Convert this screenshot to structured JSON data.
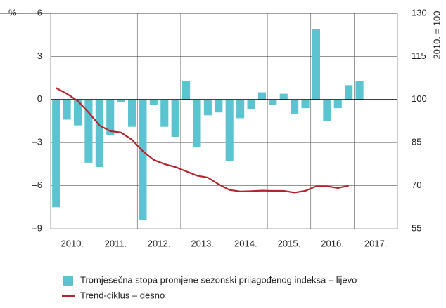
{
  "chart_data": {
    "type": "bar",
    "y_label": "%",
    "y2_label": "2010. = 100",
    "categories": [
      "2010.",
      null,
      null,
      null,
      "2011.",
      null,
      null,
      null,
      "2012.",
      null,
      null,
      null,
      "2013.",
      null,
      null,
      null,
      "2014.",
      null,
      null,
      null,
      "2015.",
      null,
      null,
      null,
      "2016.",
      null,
      null,
      null,
      "2017."
    ],
    "series": [
      {
        "name": "Tromjesečna stopa promjene sezonski prilagođenog indeksa – lijevo",
        "type": "bar",
        "color": "#5bc4d0",
        "values": [
          -7.5,
          -1.4,
          -1.8,
          -4.4,
          -4.7,
          -2.5,
          -0.2,
          -1.9,
          -8.4,
          -0.4,
          -1.9,
          -2.6,
          1.3,
          -3.3,
          -1.1,
          -0.9,
          -4.3,
          -1.3,
          -0.7,
          0.5,
          -0.4,
          0.4,
          -1.0,
          -0.6,
          4.9,
          -1.5,
          -0.6,
          1.0,
          1.3
        ]
      },
      {
        "name": "Trend-ciklus – desno",
        "type": "line",
        "axis": "y2",
        "color": "#b3242b",
        "values": [
          104,
          102,
          99.5,
          95.5,
          91,
          89,
          88.5,
          86,
          82,
          79,
          77.5,
          76.5,
          75,
          73.5,
          72.8,
          70.5,
          68.5,
          68,
          68.1,
          68.3,
          68.2,
          68.2,
          67.6,
          68.2,
          69.8,
          69.8,
          69.2,
          70,
          null
        ]
      }
    ],
    "ylim": [
      -9,
      6
    ],
    "yticks": [
      6,
      3,
      0,
      {
        "value": -3,
        "label": "–3"
      },
      {
        "value": -6,
        "label": "–6"
      },
      {
        "value": -9,
        "label": "–9"
      }
    ],
    "y2lim": [
      55,
      130
    ],
    "y2ticks": [
      130,
      115,
      100,
      85,
      70,
      55
    ],
    "grid": true
  }
}
